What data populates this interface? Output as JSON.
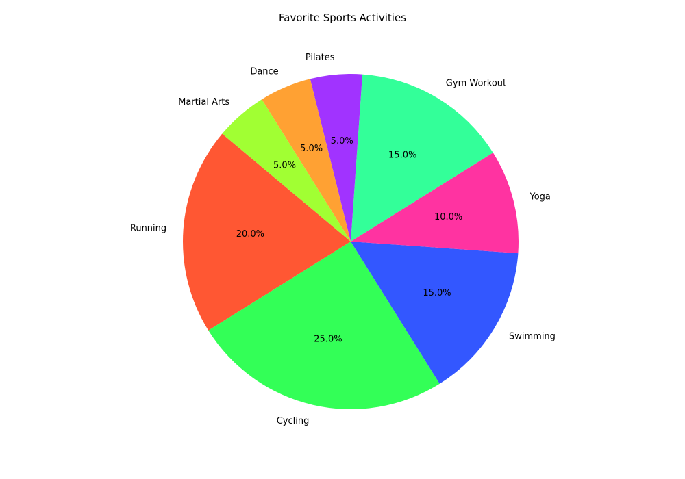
{
  "chart_data": {
    "type": "pie",
    "title": "Favorite Sports Activities",
    "slices": [
      {
        "label": "Running",
        "value": 20,
        "pct_label": "20.0%",
        "color": "#FF5733"
      },
      {
        "label": "Cycling",
        "value": 25,
        "pct_label": "25.0%",
        "color": "#33FF57"
      },
      {
        "label": "Swimming",
        "value": 15,
        "pct_label": "15.0%",
        "color": "#3357FF"
      },
      {
        "label": "Yoga",
        "value": 10,
        "pct_label": "10.0%",
        "color": "#FF33A1"
      },
      {
        "label": "Gym Workout",
        "value": 15,
        "pct_label": "15.0%",
        "color": "#33FF99"
      },
      {
        "label": "Pilates",
        "value": 5,
        "pct_label": "5.0%",
        "color": "#A133FF"
      },
      {
        "label": "Dance",
        "value": 5,
        "pct_label": "5.0%",
        "color": "#FFA133"
      },
      {
        "label": "Martial Arts",
        "value": 5,
        "pct_label": "5.0%",
        "color": "#A1FF33"
      }
    ]
  }
}
